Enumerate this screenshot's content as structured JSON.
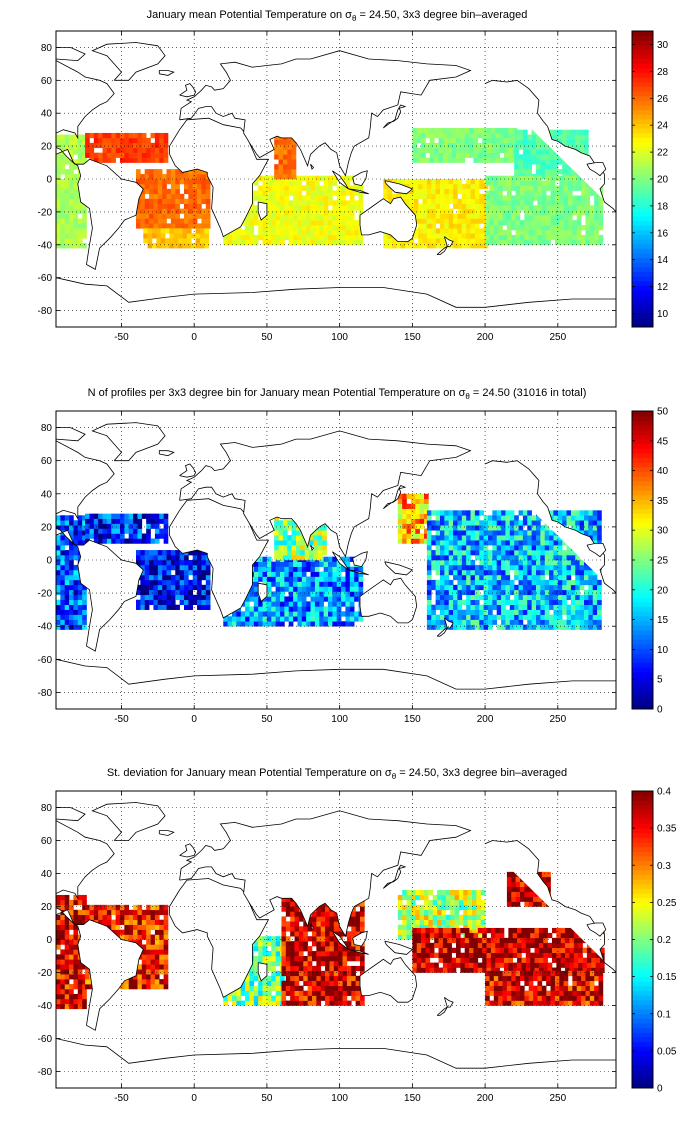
{
  "figure": {
    "panels": [
      {
        "title_pre": "January mean Potential Temperature on ",
        "title_sym": "σ",
        "title_sub": "θ",
        "title_post": " = 24.50, 3x3 degree bin–averaged",
        "chart_data": {
          "type": "heatmap",
          "map_type": "world map with gridded bins",
          "xlim": [
            -95,
            290
          ],
          "ylim": [
            -90,
            90
          ],
          "xticks": [
            -50,
            0,
            50,
            100,
            150,
            200,
            250
          ],
          "yticks": [
            -80,
            -60,
            -40,
            -20,
            0,
            20,
            40,
            60,
            80
          ],
          "grid": true,
          "colormap": "jet",
          "colorbar": {
            "min": 9,
            "max": 31,
            "ticks": [
              10,
              12,
              14,
              16,
              18,
              20,
              22,
              24,
              26,
              28,
              30
            ],
            "position": "right"
          },
          "regions": [
            {
              "lon": [
                -95,
                -75
              ],
              "lat": [
                -42,
                25
              ],
              "value": 21
            },
            {
              "lon": [
                -75,
                -20
              ],
              "lat": [
                10,
                27
              ],
              "value": 27
            },
            {
              "lon": [
                -40,
                10
              ],
              "lat": [
                -30,
                5
              ],
              "value": 26
            },
            {
              "lon": [
                -35,
                10
              ],
              "lat": [
                -42,
                -30
              ],
              "value": 24
            },
            {
              "lon": [
                20,
                115
              ],
              "lat": [
                -40,
                0
              ],
              "value": 22.5
            },
            {
              "lon": [
                55,
                70
              ],
              "lat": [
                0,
                25
              ],
              "value": 26
            },
            {
              "lon": [
                130,
                200
              ],
              "lat": [
                -42,
                0
              ],
              "value": 23
            },
            {
              "lon": [
                150,
                220
              ],
              "lat": [
                10,
                30
              ],
              "value": 20
            },
            {
              "lon": [
                220,
                270
              ],
              "lat": [
                0,
                30
              ],
              "value": 19
            },
            {
              "lon": [
                200,
                280
              ],
              "lat": [
                -40,
                0
              ],
              "value": 20
            }
          ]
        }
      },
      {
        "title_pre": "N of profiles per 3x3 degree bin for January mean Potential Temperature on ",
        "title_sym": "σ",
        "title_sub": "θ",
        "title_post": " = 24.50 (31016 in total)",
        "chart_data": {
          "type": "heatmap",
          "map_type": "world map with gridded bins",
          "xlim": [
            -95,
            290
          ],
          "ylim": [
            -90,
            90
          ],
          "xticks": [
            -50,
            0,
            50,
            100,
            150,
            200,
            250
          ],
          "yticks": [
            -80,
            -60,
            -40,
            -20,
            0,
            20,
            40,
            60,
            80
          ],
          "grid": true,
          "colormap": "jet",
          "total_profiles": 31016,
          "colorbar": {
            "min": 0,
            "max": 50,
            "ticks": [
              0,
              5,
              10,
              15,
              20,
              25,
              30,
              35,
              40,
              45,
              50
            ],
            "position": "right"
          },
          "regions": [
            {
              "lon": [
                -95,
                -75
              ],
              "lat": [
                -42,
                25
              ],
              "value": 10
            },
            {
              "lon": [
                -75,
                -20
              ],
              "lat": [
                10,
                27
              ],
              "value": 8
            },
            {
              "lon": [
                -40,
                10
              ],
              "lat": [
                -30,
                5
              ],
              "value": 6
            },
            {
              "lon": [
                20,
                115
              ],
              "lat": [
                -40,
                0
              ],
              "value": 14
            },
            {
              "lon": [
                55,
                90
              ],
              "lat": [
                0,
                25
              ],
              "value": 26
            },
            {
              "lon": [
                140,
                160
              ],
              "lat": [
                10,
                40
              ],
              "value": 35
            },
            {
              "lon": [
                160,
                280
              ],
              "lat": [
                -42,
                30
              ],
              "value": 16
            }
          ]
        }
      },
      {
        "title_pre": "St. deviation for January mean Potential Temperature on ",
        "title_sym": "σ",
        "title_sub": "θ",
        "title_post": " = 24.50, 3x3 degree bin–averaged",
        "chart_data": {
          "type": "heatmap",
          "map_type": "world map with gridded bins",
          "xlim": [
            -95,
            290
          ],
          "ylim": [
            -90,
            90
          ],
          "xticks": [
            -50,
            0,
            50,
            100,
            150,
            200,
            250
          ],
          "yticks": [
            -80,
            -60,
            -40,
            -20,
            0,
            20,
            40,
            60,
            80
          ],
          "grid": true,
          "colormap": "jet",
          "colorbar": {
            "min": 0,
            "max": 0.4,
            "ticks": [
              0,
              0.05,
              0.1,
              0.15,
              0.2,
              0.25,
              0.3,
              0.35,
              0.4
            ],
            "position": "right"
          },
          "regions": [
            {
              "lon": [
                -95,
                -75
              ],
              "lat": [
                -42,
                25
              ],
              "value": 0.36
            },
            {
              "lon": [
                -75,
                -20
              ],
              "lat": [
                -30,
                20
              ],
              "value": 0.34
            },
            {
              "lon": [
                20,
                60
              ],
              "lat": [
                -40,
                0
              ],
              "value": 0.2
            },
            {
              "lon": [
                60,
                115
              ],
              "lat": [
                -40,
                25
              ],
              "value": 0.37
            },
            {
              "lon": [
                140,
                200
              ],
              "lat": [
                0,
                30
              ],
              "value": 0.22
            },
            {
              "lon": [
                150,
                280
              ],
              "lat": [
                -20,
                5
              ],
              "value": 0.38
            },
            {
              "lon": [
                200,
                280
              ],
              "lat": [
                -40,
                -20
              ],
              "value": 0.36
            },
            {
              "lon": [
                215,
                245
              ],
              "lat": [
                20,
                40
              ],
              "value": 0.38
            }
          ]
        }
      }
    ]
  }
}
